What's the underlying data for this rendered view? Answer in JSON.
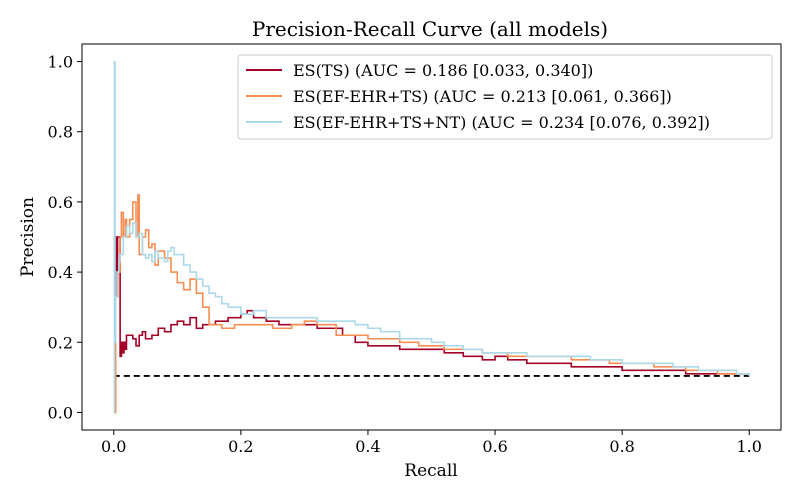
{
  "chart_data": {
    "type": "line",
    "title": "Precision-Recall Curve (all models)",
    "xlabel": "Recall",
    "ylabel": "Precision",
    "xlim": [
      -0.05,
      1.05
    ],
    "ylim": [
      -0.05,
      1.05
    ],
    "xticks": [
      0.0,
      0.2,
      0.4,
      0.6,
      0.8,
      1.0
    ],
    "yticks": [
      0.0,
      0.2,
      0.4,
      0.6,
      0.8,
      1.0
    ],
    "xtick_labels": [
      "0.0",
      "0.2",
      "0.4",
      "0.6",
      "0.8",
      "1.0"
    ],
    "ytick_labels": [
      "0.0",
      "0.2",
      "0.4",
      "0.6",
      "0.8",
      "1.0"
    ],
    "grid": false,
    "legend_position": "top-right",
    "baseline": {
      "y": 0.104,
      "x": [
        0.0,
        1.0
      ],
      "style": "dashed",
      "color": "#000000"
    },
    "series": [
      {
        "name": "ES(TS) (AUC = 0.186 [0.033, 0.340])",
        "color": "#a50026",
        "x": [
          0.0,
          0.003,
          0.004,
          0.006,
          0.008,
          0.01,
          0.012,
          0.014,
          0.016,
          0.018,
          0.02,
          0.025,
          0.03,
          0.035,
          0.04,
          0.045,
          0.05,
          0.06,
          0.07,
          0.08,
          0.09,
          0.1,
          0.11,
          0.12,
          0.13,
          0.14,
          0.16,
          0.18,
          0.2,
          0.21,
          0.22,
          0.24,
          0.26,
          0.28,
          0.3,
          0.32,
          0.34,
          0.36,
          0.38,
          0.4,
          0.42,
          0.45,
          0.48,
          0.5,
          0.52,
          0.55,
          0.58,
          0.6,
          0.62,
          0.65,
          0.68,
          0.7,
          0.72,
          0.75,
          0.78,
          0.8,
          0.82,
          0.85,
          0.88,
          0.9,
          0.92,
          0.95,
          0.98,
          1.0
        ],
        "y": [
          0.5,
          0.5,
          0.33,
          0.5,
          0.5,
          0.16,
          0.2,
          0.17,
          0.2,
          0.18,
          0.22,
          0.22,
          0.21,
          0.19,
          0.22,
          0.23,
          0.21,
          0.22,
          0.24,
          0.23,
          0.25,
          0.26,
          0.25,
          0.27,
          0.24,
          0.25,
          0.26,
          0.27,
          0.28,
          0.29,
          0.27,
          0.26,
          0.25,
          0.25,
          0.25,
          0.24,
          0.24,
          0.22,
          0.2,
          0.19,
          0.19,
          0.18,
          0.18,
          0.18,
          0.17,
          0.16,
          0.15,
          0.16,
          0.15,
          0.14,
          0.14,
          0.14,
          0.13,
          0.13,
          0.13,
          0.12,
          0.12,
          0.12,
          0.12,
          0.11,
          0.11,
          0.11,
          0.11,
          0.104
        ]
      },
      {
        "name": "ES(EF-EHR+TS) (AUC = 0.213 [0.061, 0.366])",
        "color": "#f88d52",
        "x": [
          0.0,
          0.003,
          0.006,
          0.01,
          0.012,
          0.015,
          0.018,
          0.02,
          0.025,
          0.03,
          0.035,
          0.038,
          0.04,
          0.045,
          0.05,
          0.055,
          0.06,
          0.065,
          0.07,
          0.08,
          0.09,
          0.1,
          0.11,
          0.12,
          0.13,
          0.14,
          0.15,
          0.17,
          0.19,
          0.21,
          0.23,
          0.25,
          0.28,
          0.3,
          0.32,
          0.35,
          0.38,
          0.4,
          0.42,
          0.45,
          0.48,
          0.5,
          0.52,
          0.55,
          0.58,
          0.6,
          0.62,
          0.65,
          0.68,
          0.7,
          0.72,
          0.75,
          0.78,
          0.8,
          0.82,
          0.85,
          0.88,
          0.9,
          0.92,
          0.95,
          0.98,
          1.0
        ],
        "y": [
          0.0,
          0.33,
          0.4,
          0.5,
          0.57,
          0.5,
          0.55,
          0.5,
          0.55,
          0.6,
          0.5,
          0.62,
          0.45,
          0.5,
          0.52,
          0.47,
          0.48,
          0.42,
          0.46,
          0.44,
          0.4,
          0.37,
          0.35,
          0.38,
          0.34,
          0.3,
          0.25,
          0.24,
          0.25,
          0.25,
          0.25,
          0.24,
          0.25,
          0.26,
          0.25,
          0.22,
          0.22,
          0.21,
          0.21,
          0.2,
          0.19,
          0.19,
          0.18,
          0.18,
          0.17,
          0.17,
          0.16,
          0.16,
          0.16,
          0.16,
          0.15,
          0.15,
          0.14,
          0.14,
          0.14,
          0.13,
          0.13,
          0.12,
          0.12,
          0.11,
          0.11,
          0.104
        ]
      },
      {
        "name": "ES(EF-EHR+TS+NT) (AUC = 0.234 [0.076, 0.392])",
        "color": "#abd9e9",
        "x": [
          0.0,
          0.001,
          0.002,
          0.003,
          0.005,
          0.008,
          0.01,
          0.015,
          0.02,
          0.025,
          0.03,
          0.035,
          0.04,
          0.045,
          0.05,
          0.055,
          0.06,
          0.065,
          0.07,
          0.075,
          0.08,
          0.085,
          0.09,
          0.095,
          0.1,
          0.11,
          0.12,
          0.13,
          0.14,
          0.15,
          0.16,
          0.17,
          0.18,
          0.2,
          0.22,
          0.24,
          0.26,
          0.28,
          0.3,
          0.32,
          0.34,
          0.36,
          0.38,
          0.4,
          0.42,
          0.45,
          0.48,
          0.5,
          0.52,
          0.55,
          0.58,
          0.6,
          0.62,
          0.65,
          0.68,
          0.7,
          0.72,
          0.75,
          0.78,
          0.8,
          0.82,
          0.85,
          0.88,
          0.9,
          0.92,
          0.95,
          0.98,
          1.0
        ],
        "y": [
          0.0,
          1.0,
          0.2,
          0.33,
          0.4,
          0.43,
          0.45,
          0.5,
          0.53,
          0.51,
          0.54,
          0.5,
          0.51,
          0.45,
          0.44,
          0.45,
          0.43,
          0.46,
          0.44,
          0.44,
          0.43,
          0.46,
          0.47,
          0.45,
          0.45,
          0.42,
          0.4,
          0.38,
          0.36,
          0.34,
          0.33,
          0.31,
          0.3,
          0.28,
          0.29,
          0.27,
          0.27,
          0.27,
          0.27,
          0.26,
          0.26,
          0.26,
          0.25,
          0.24,
          0.23,
          0.21,
          0.21,
          0.2,
          0.19,
          0.18,
          0.17,
          0.17,
          0.17,
          0.16,
          0.16,
          0.16,
          0.16,
          0.15,
          0.15,
          0.14,
          0.14,
          0.14,
          0.13,
          0.13,
          0.12,
          0.12,
          0.11,
          0.104
        ]
      }
    ]
  }
}
